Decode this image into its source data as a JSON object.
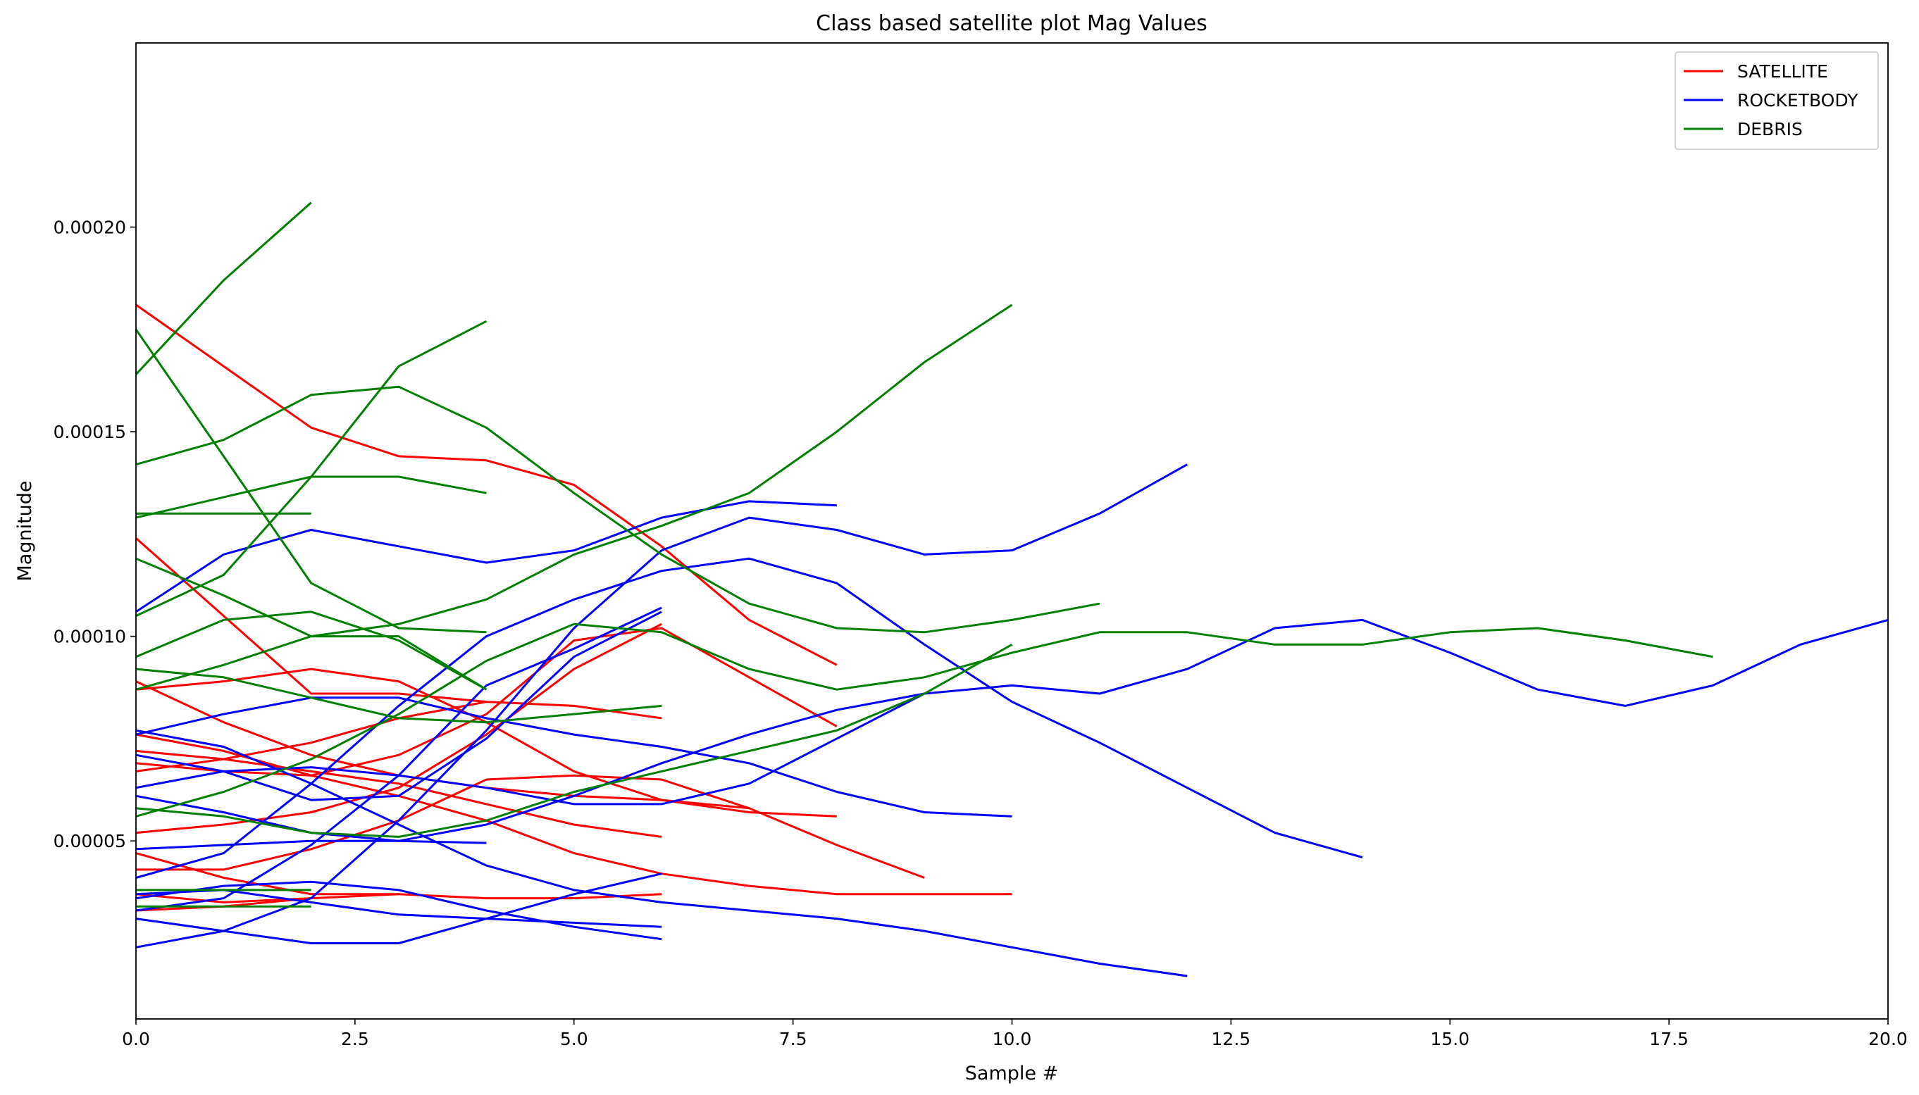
{
  "chart_data": {
    "type": "line",
    "title": "Class based satellite plot Mag Values",
    "xlabel": "Sample #",
    "ylabel": "Magnitude",
    "xlim": [
      0,
      20
    ],
    "ylim": [
      6.5e-06,
      0.000245
    ],
    "xticks": [
      "0.0",
      "2.5",
      "5.0",
      "7.5",
      "10.0",
      "12.5",
      "15.0",
      "17.5",
      "20.0"
    ],
    "yticks": [
      "0.00005",
      "0.00010",
      "0.00015",
      "0.00020"
    ],
    "grid": false,
    "legend_position": "top-right",
    "legend": [
      {
        "label": "SATELLITE",
        "color": "#ff0000"
      },
      {
        "label": "ROCKETBODY",
        "color": "#0000ff"
      },
      {
        "label": "DEBRIS",
        "color": "#008000"
      }
    ],
    "colors": {
      "SATELLITE": "#ff0000",
      "ROCKETBODY": "#0000ff",
      "DEBRIS": "#008000"
    },
    "series": [
      {
        "class": "SATELLITE",
        "values": [
          0.000181,
          0.000166,
          0.000151,
          0.000144,
          0.000143,
          0.000137,
          0.000122,
          0.000104,
          9.3e-05
        ]
      },
      {
        "class": "SATELLITE",
        "values": [
          0.000124,
          0.000105,
          8.6e-05,
          8.6e-05,
          8.4e-05,
          8.3e-05,
          8e-05
        ]
      },
      {
        "class": "SATELLITE",
        "values": [
          8.7e-05,
          8.9e-05,
          9.2e-05,
          8.9e-05,
          7.9e-05,
          6.7e-05,
          6e-05,
          5.7e-05,
          5.6e-05
        ]
      },
      {
        "class": "SATELLITE",
        "values": [
          8.9e-05,
          7.9e-05,
          7.1e-05,
          6.6e-05,
          6.3e-05,
          6.1e-05,
          6e-05,
          5.8e-05,
          4.9e-05,
          4.1e-05
        ]
      },
      {
        "class": "SATELLITE",
        "values": [
          7.6e-05,
          7.2e-05,
          6.6e-05,
          6.1e-05,
          5.5e-05,
          4.7e-05,
          4.2e-05,
          3.9e-05,
          3.7e-05,
          3.7e-05,
          3.7e-05
        ]
      },
      {
        "class": "SATELLITE",
        "values": [
          7.2e-05,
          7e-05,
          6.7e-05,
          6.4e-05,
          5.9e-05,
          5.4e-05,
          5.1e-05
        ]
      },
      {
        "class": "SATELLITE",
        "values": [
          6.9e-05,
          6.7e-05,
          6.6e-05,
          7.1e-05,
          8.1e-05,
          9.9e-05,
          0.000102,
          9e-05,
          7.8e-05
        ]
      },
      {
        "class": "SATELLITE",
        "values": [
          5.2e-05,
          5.4e-05,
          5.7e-05,
          6.3e-05,
          7.6e-05,
          9.2e-05,
          0.000103
        ]
      },
      {
        "class": "SATELLITE",
        "values": [
          4.3e-05,
          4.3e-05,
          4.8e-05,
          5.5e-05,
          6.5e-05,
          6.6e-05,
          6.5e-05,
          5.8e-05
        ]
      },
      {
        "class": "SATELLITE",
        "values": [
          4.7e-05,
          4.1e-05,
          3.7e-05,
          3.7e-05,
          3.6e-05,
          3.6e-05,
          3.7e-05
        ]
      },
      {
        "class": "SATELLITE",
        "values": [
          6.7e-05,
          7e-05,
          7.4e-05,
          8e-05,
          8.4e-05
        ]
      },
      {
        "class": "SATELLITE",
        "values": [
          3.3e-05,
          3.4e-05,
          3.6e-05,
          3.7e-05
        ]
      },
      {
        "class": "SATELLITE",
        "values": [
          3.7e-05,
          3.5e-05,
          3.6e-05
        ]
      },
      {
        "class": "ROCKETBODY",
        "values": [
          0.000106,
          0.00012,
          0.000126,
          0.000122,
          0.000118,
          0.000121,
          0.000129,
          0.000133,
          0.000132
        ]
      },
      {
        "class": "ROCKETBODY",
        "values": [
          7.7e-05,
          7.3e-05,
          6.4e-05,
          5.4e-05,
          4.4e-05,
          3.8e-05,
          3.5e-05,
          3.3e-05,
          3.1e-05,
          2.8e-05,
          2.4e-05,
          2e-05,
          1.7e-05
        ]
      },
      {
        "class": "ROCKETBODY",
        "values": [
          6.3e-05,
          6.7e-05,
          6.8e-05,
          6.6e-05,
          6.3e-05,
          5.9e-05,
          5.9e-05,
          6.4e-05,
          7.5e-05,
          8.6e-05,
          8.8e-05,
          8.6e-05,
          9.2e-05,
          0.000102,
          0.000104,
          9.6e-05,
          8.7e-05,
          8.3e-05,
          8.8e-05,
          9.8e-05,
          0.000104
        ]
      },
      {
        "class": "ROCKETBODY",
        "values": [
          7.6e-05,
          8.1e-05,
          8.5e-05,
          8.5e-05,
          8e-05,
          7.6e-05,
          7.3e-05,
          6.9e-05,
          6.2e-05,
          5.7e-05,
          5.6e-05
        ]
      },
      {
        "class": "ROCKETBODY",
        "values": [
          6.1e-05,
          5.7e-05,
          5.2e-05,
          5e-05,
          4.95e-05
        ]
      },
      {
        "class": "ROCKETBODY",
        "values": [
          4.8e-05,
          4.9e-05,
          5e-05,
          5e-05,
          5.4e-05,
          6.1e-05,
          6.9e-05,
          7.6e-05,
          8.2e-05,
          8.6e-05
        ]
      },
      {
        "class": "ROCKETBODY",
        "values": [
          4.1e-05,
          4.7e-05,
          6.4e-05,
          8.3e-05,
          0.0001,
          0.000109,
          0.000116,
          0.000119,
          0.000113,
          9.8e-05,
          8.4e-05,
          7.4e-05,
          6.3e-05,
          5.2e-05,
          4.6e-05
        ]
      },
      {
        "class": "ROCKETBODY",
        "values": [
          3.1e-05,
          2.8e-05,
          2.5e-05,
          2.5e-05,
          3.1e-05,
          3.7e-05,
          4.2e-05
        ]
      },
      {
        "class": "ROCKETBODY",
        "values": [
          2.4e-05,
          2.8e-05,
          3.6e-05,
          5.5e-05,
          7.7e-05,
          0.000102,
          0.000121,
          0.000129,
          0.000126,
          0.00012,
          0.000121,
          0.00013,
          0.000142
        ]
      },
      {
        "class": "ROCKETBODY",
        "values": [
          3.6e-05,
          3.9e-05,
          4e-05,
          3.8e-05,
          3.3e-05,
          2.9e-05,
          2.6e-05
        ]
      },
      {
        "class": "ROCKETBODY",
        "values": [
          3.7e-05,
          3.8e-05,
          3.5e-05,
          3.2e-05,
          3.1e-05,
          3e-05,
          2.9e-05
        ]
      },
      {
        "class": "ROCKETBODY",
        "values": [
          3.3e-05,
          3.6e-05,
          4.9e-05,
          6.6e-05,
          8.8e-05,
          9.7e-05,
          0.000107
        ]
      },
      {
        "class": "ROCKETBODY",
        "values": [
          7.1e-05,
          6.7e-05,
          6e-05,
          6.1e-05,
          7.5e-05,
          9.5e-05,
          0.000106
        ]
      },
      {
        "class": "DEBRIS",
        "values": [
          0.000164,
          0.000187,
          0.000206
        ]
      },
      {
        "class": "DEBRIS",
        "values": [
          0.000175,
          0.000144,
          0.000113,
          0.000102,
          0.000101
        ]
      },
      {
        "class": "DEBRIS",
        "values": [
          0.000142,
          0.000148,
          0.000159,
          0.000161,
          0.000151,
          0.000135,
          0.00012,
          0.000108,
          0.000102,
          0.000101,
          0.000104,
          0.000108
        ]
      },
      {
        "class": "DEBRIS",
        "values": [
          0.00013,
          0.00013,
          0.00013
        ]
      },
      {
        "class": "DEBRIS",
        "values": [
          0.000129,
          0.000134,
          0.000139,
          0.000139,
          0.000135
        ]
      },
      {
        "class": "DEBRIS",
        "values": [
          0.000119,
          0.00011,
          0.0001,
          0.0001,
          8.7e-05
        ]
      },
      {
        "class": "DEBRIS",
        "values": [
          0.000105,
          0.000115,
          0.000139,
          0.000166,
          0.000177
        ]
      },
      {
        "class": "DEBRIS",
        "values": [
          9.5e-05,
          0.000104,
          0.000106,
          9.9e-05,
          8.7e-05
        ]
      },
      {
        "class": "DEBRIS",
        "values": [
          8.7e-05,
          9.3e-05,
          0.0001,
          0.000103,
          0.000109,
          0.00012,
          0.000127,
          0.000135,
          0.00015,
          0.000167,
          0.000181
        ]
      },
      {
        "class": "DEBRIS",
        "values": [
          9.2e-05,
          9e-05,
          8.5e-05,
          8e-05,
          7.9e-05,
          8.1e-05,
          8.3e-05
        ]
      },
      {
        "class": "DEBRIS",
        "values": [
          5.6e-05,
          6.2e-05,
          7e-05,
          8.1e-05,
          9.4e-05,
          0.000103,
          0.000101,
          9.2e-05,
          8.7e-05,
          9e-05,
          9.6e-05,
          0.000101,
          0.000101,
          9.8e-05,
          9.8e-05,
          0.000101,
          0.000102,
          9.9e-05,
          9.5e-05
        ]
      },
      {
        "class": "DEBRIS",
        "values": [
          5.8e-05,
          5.6e-05,
          5.2e-05,
          5.1e-05,
          5.5e-05,
          6.2e-05,
          6.7e-05,
          7.2e-05,
          7.7e-05,
          8.6e-05,
          9.8e-05
        ]
      },
      {
        "class": "DEBRIS",
        "values": [
          3.8e-05,
          3.8e-05,
          3.8e-05
        ]
      },
      {
        "class": "DEBRIS",
        "values": [
          3.4e-05,
          3.4e-05,
          3.4e-05
        ]
      }
    ]
  }
}
